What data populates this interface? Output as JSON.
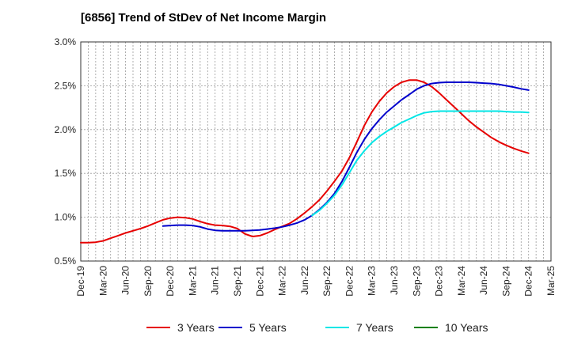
{
  "chart_data": {
    "type": "line",
    "title": "[6856]  Trend of StDev of Net Income Margin",
    "xlabel": "",
    "ylabel": "",
    "ylim": [
      0.5,
      3.0
    ],
    "y_ticks": [
      "0.5%",
      "1.0%",
      "1.5%",
      "2.0%",
      "2.5%",
      "3.0%"
    ],
    "y_tick_values": [
      0.5,
      1.0,
      1.5,
      2.0,
      2.5,
      3.0
    ],
    "x_ticks": [
      "Dec-19",
      "Mar-20",
      "Jun-20",
      "Sep-20",
      "Dec-20",
      "Mar-21",
      "Jun-21",
      "Sep-21",
      "Dec-21",
      "Mar-22",
      "Jun-22",
      "Sep-22",
      "Dec-22",
      "Mar-23",
      "Jun-23",
      "Sep-23",
      "Dec-23",
      "Mar-24",
      "Jun-24",
      "Sep-24",
      "Dec-24",
      "Mar-25"
    ],
    "grid": true,
    "legend_position": "bottom",
    "series": [
      {
        "name": "3 Years",
        "color": "#e60000",
        "points": [
          [
            0,
            0.71
          ],
          [
            0.33,
            0.71
          ],
          [
            0.67,
            0.715
          ],
          [
            1,
            0.73
          ],
          [
            1.33,
            0.76
          ],
          [
            1.67,
            0.79
          ],
          [
            2,
            0.82
          ],
          [
            2.33,
            0.845
          ],
          [
            2.67,
            0.87
          ],
          [
            3,
            0.9
          ],
          [
            3.33,
            0.935
          ],
          [
            3.67,
            0.97
          ],
          [
            4,
            0.99
          ],
          [
            4.33,
            1.0
          ],
          [
            4.67,
            0.995
          ],
          [
            5,
            0.98
          ],
          [
            5.33,
            0.95
          ],
          [
            5.67,
            0.925
          ],
          [
            6,
            0.91
          ],
          [
            6.33,
            0.905
          ],
          [
            6.67,
            0.895
          ],
          [
            7,
            0.87
          ],
          [
            7.33,
            0.81
          ],
          [
            7.67,
            0.78
          ],
          [
            8,
            0.79
          ],
          [
            8.33,
            0.82
          ],
          [
            8.67,
            0.86
          ],
          [
            9,
            0.895
          ],
          [
            9.33,
            0.93
          ],
          [
            9.67,
            0.985
          ],
          [
            10,
            1.05
          ],
          [
            10.33,
            1.12
          ],
          [
            10.67,
            1.2
          ],
          [
            11,
            1.3
          ],
          [
            11.33,
            1.41
          ],
          [
            11.67,
            1.53
          ],
          [
            12,
            1.68
          ],
          [
            12.33,
            1.86
          ],
          [
            12.67,
            2.05
          ],
          [
            13,
            2.2
          ],
          [
            13.33,
            2.32
          ],
          [
            13.67,
            2.42
          ],
          [
            14,
            2.49
          ],
          [
            14.33,
            2.54
          ],
          [
            14.67,
            2.565
          ],
          [
            15,
            2.565
          ],
          [
            15.33,
            2.54
          ],
          [
            15.67,
            2.49
          ],
          [
            16,
            2.42
          ],
          [
            16.33,
            2.34
          ],
          [
            16.67,
            2.26
          ],
          [
            17,
            2.18
          ],
          [
            17.33,
            2.1
          ],
          [
            17.67,
            2.03
          ],
          [
            18,
            1.97
          ],
          [
            18.33,
            1.91
          ],
          [
            18.67,
            1.86
          ],
          [
            19,
            1.82
          ],
          [
            19.33,
            1.785
          ],
          [
            19.67,
            1.755
          ],
          [
            20,
            1.73
          ]
        ]
      },
      {
        "name": "5 Years",
        "color": "#0000cc",
        "points": [
          [
            3.67,
            0.9
          ],
          [
            4,
            0.905
          ],
          [
            4.33,
            0.91
          ],
          [
            4.67,
            0.91
          ],
          [
            5,
            0.905
          ],
          [
            5.33,
            0.89
          ],
          [
            5.67,
            0.865
          ],
          [
            6,
            0.85
          ],
          [
            6.33,
            0.845
          ],
          [
            6.67,
            0.845
          ],
          [
            7,
            0.845
          ],
          [
            7.33,
            0.845
          ],
          [
            7.67,
            0.85
          ],
          [
            8,
            0.855
          ],
          [
            8.33,
            0.865
          ],
          [
            8.67,
            0.875
          ],
          [
            9,
            0.89
          ],
          [
            9.33,
            0.91
          ],
          [
            9.67,
            0.935
          ],
          [
            10,
            0.97
          ],
          [
            10.33,
            1.02
          ],
          [
            10.67,
            1.09
          ],
          [
            11,
            1.17
          ],
          [
            11.33,
            1.27
          ],
          [
            11.67,
            1.41
          ],
          [
            12,
            1.57
          ],
          [
            12.33,
            1.74
          ],
          [
            12.67,
            1.89
          ],
          [
            13,
            2.01
          ],
          [
            13.33,
            2.11
          ],
          [
            13.67,
            2.2
          ],
          [
            14,
            2.27
          ],
          [
            14.33,
            2.34
          ],
          [
            14.67,
            2.4
          ],
          [
            15,
            2.46
          ],
          [
            15.33,
            2.5
          ],
          [
            15.67,
            2.525
          ],
          [
            16,
            2.535
          ],
          [
            16.33,
            2.54
          ],
          [
            16.67,
            2.54
          ],
          [
            17,
            2.54
          ],
          [
            17.33,
            2.54
          ],
          [
            17.67,
            2.535
          ],
          [
            18,
            2.53
          ],
          [
            18.33,
            2.525
          ],
          [
            18.67,
            2.515
          ],
          [
            19,
            2.5
          ],
          [
            19.33,
            2.485
          ],
          [
            19.67,
            2.465
          ],
          [
            20,
            2.45
          ]
        ]
      },
      {
        "name": "7 Years",
        "color": "#00e6e6",
        "points": [
          [
            10.33,
            1.02
          ],
          [
            10.67,
            1.08
          ],
          [
            11,
            1.16
          ],
          [
            11.33,
            1.25
          ],
          [
            11.67,
            1.37
          ],
          [
            12,
            1.51
          ],
          [
            12.33,
            1.65
          ],
          [
            12.67,
            1.76
          ],
          [
            13,
            1.85
          ],
          [
            13.33,
            1.92
          ],
          [
            13.67,
            1.98
          ],
          [
            14,
            2.03
          ],
          [
            14.33,
            2.08
          ],
          [
            14.67,
            2.12
          ],
          [
            15,
            2.16
          ],
          [
            15.33,
            2.19
          ],
          [
            15.67,
            2.205
          ],
          [
            16,
            2.21
          ],
          [
            16.33,
            2.21
          ],
          [
            16.67,
            2.21
          ],
          [
            17,
            2.21
          ],
          [
            17.33,
            2.21
          ],
          [
            17.67,
            2.21
          ],
          [
            18,
            2.21
          ],
          [
            18.33,
            2.21
          ],
          [
            18.67,
            2.21
          ],
          [
            19,
            2.205
          ],
          [
            19.33,
            2.2
          ],
          [
            19.67,
            2.2
          ],
          [
            20,
            2.195
          ]
        ]
      },
      {
        "name": "10 Years",
        "color": "#008000",
        "points": []
      }
    ]
  }
}
